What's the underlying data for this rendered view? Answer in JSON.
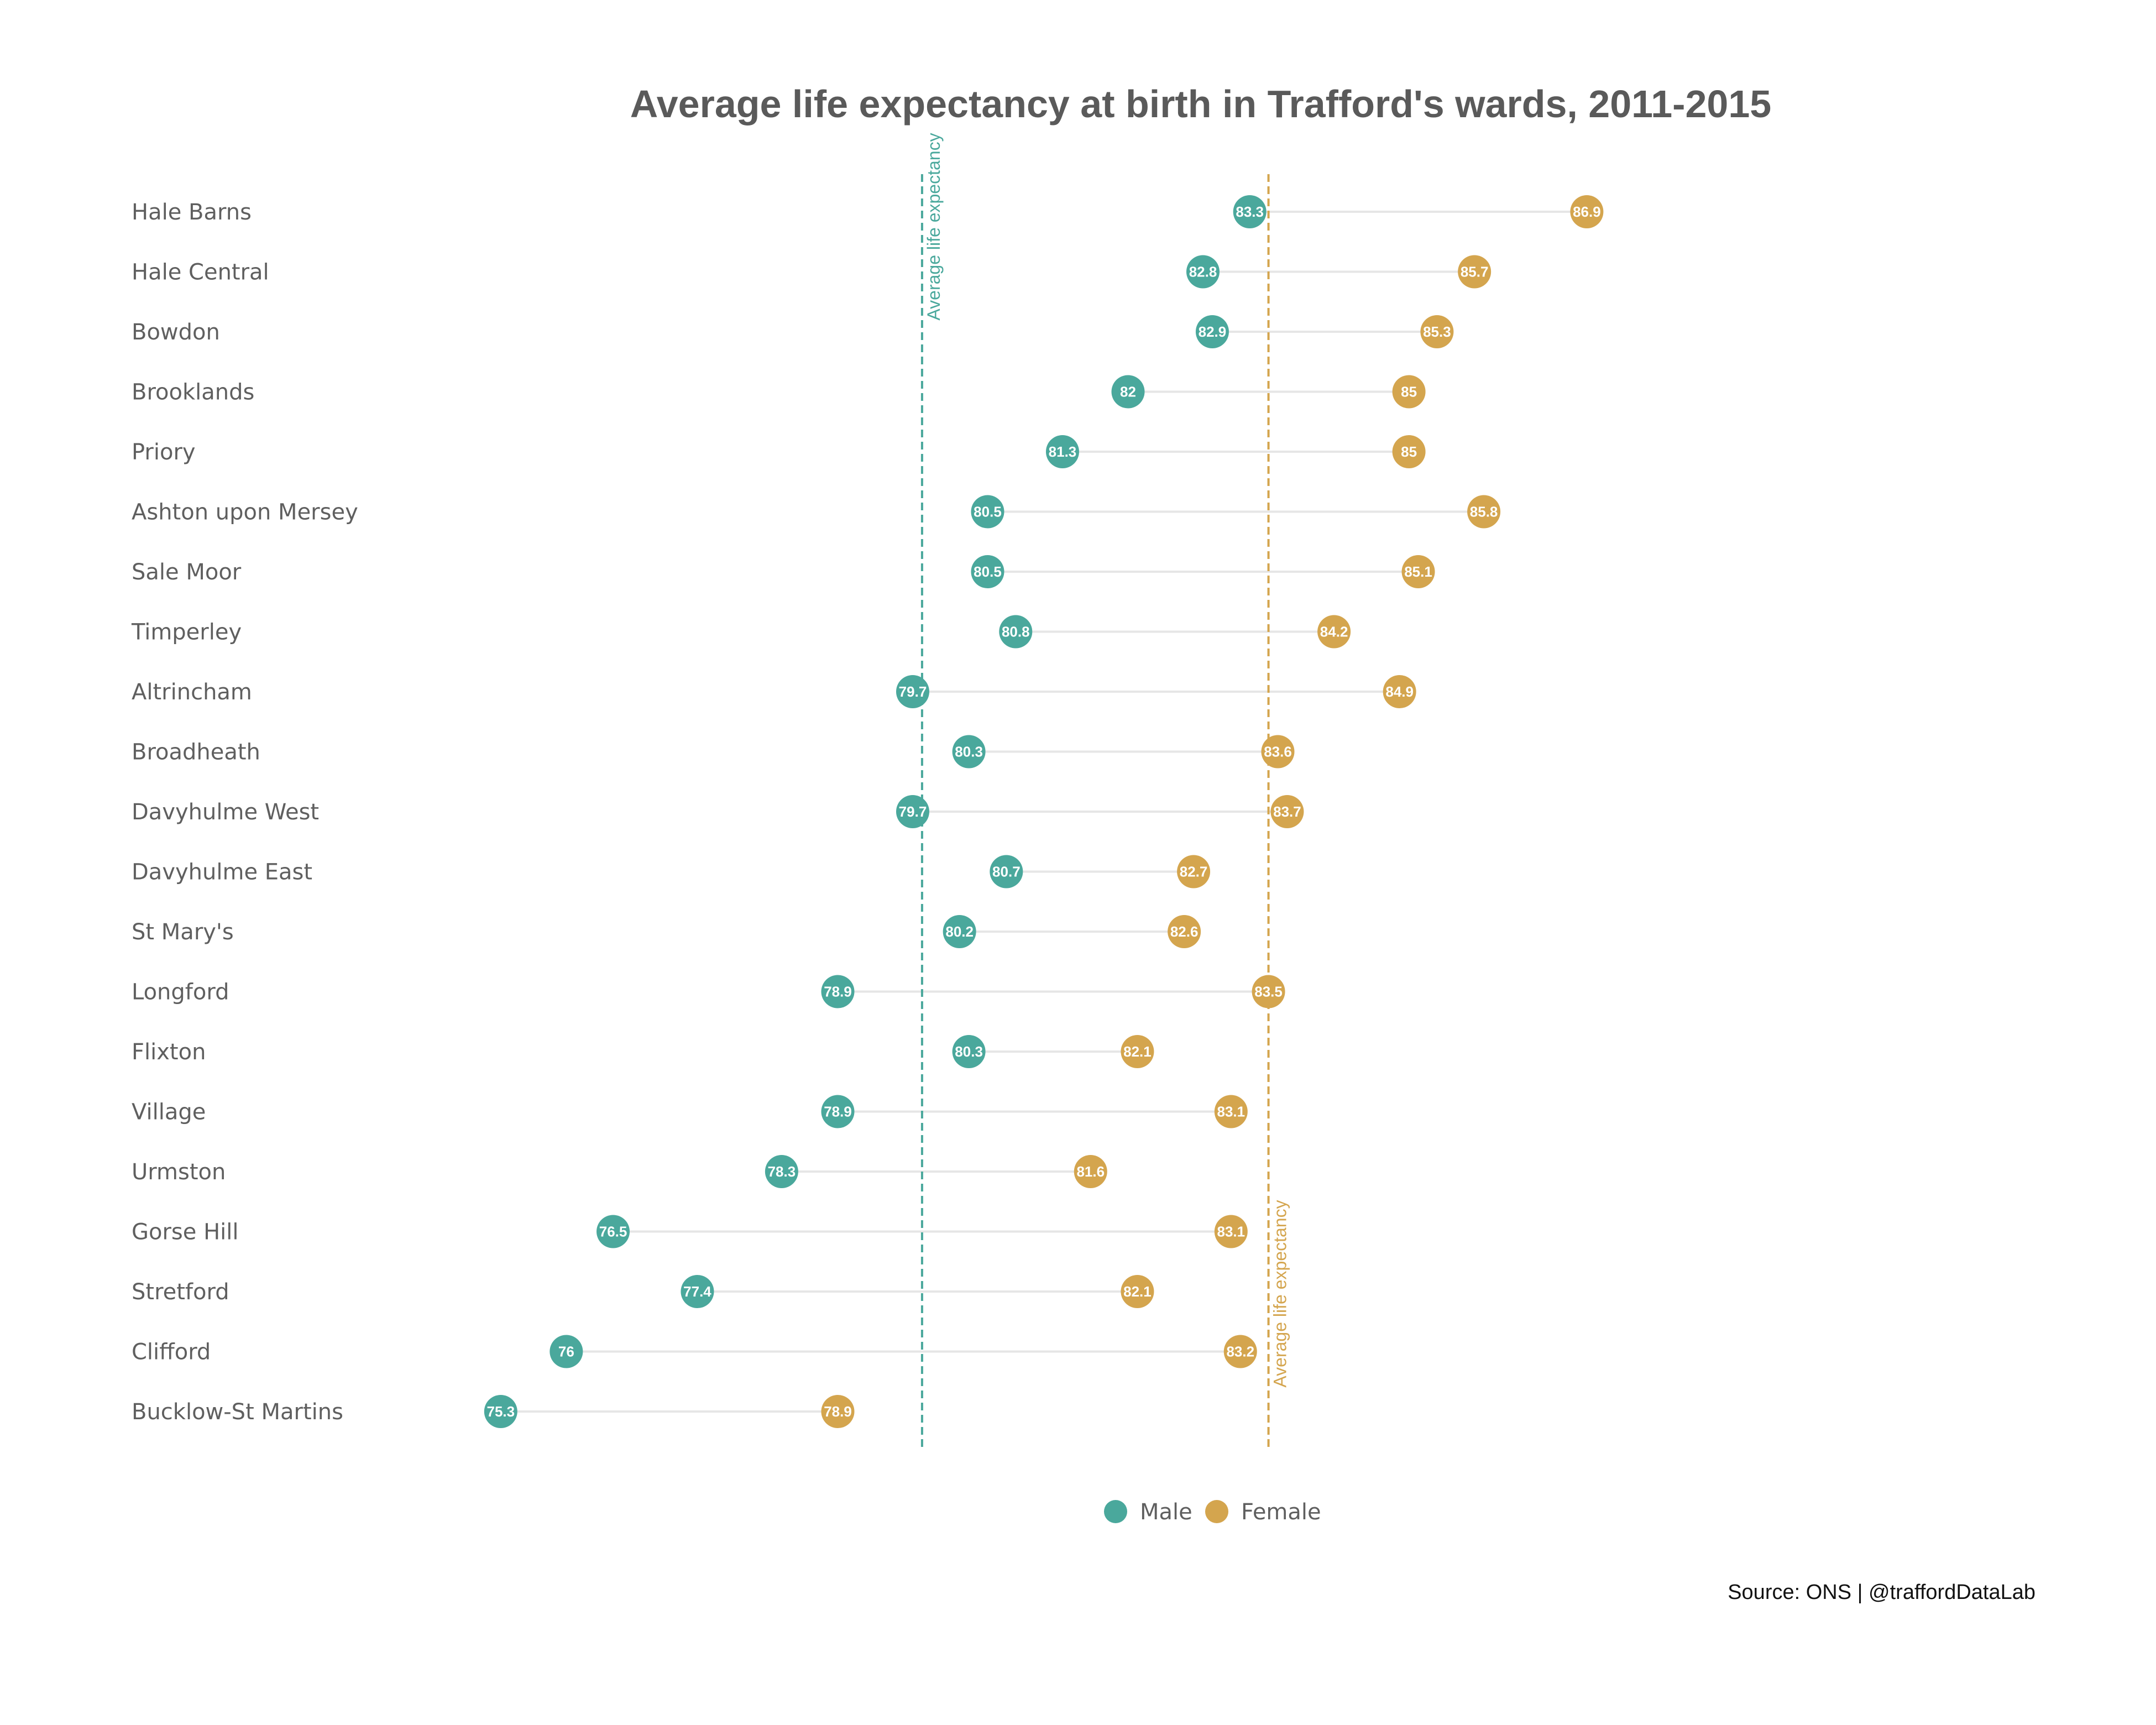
{
  "chart_data": {
    "type": "dumbbell",
    "title": "Average life expectancy at birth in Trafford's wards, 2011-2015",
    "caption": "Source: ONS |  @traffordDataLab",
    "xlim": [
      75.0,
      87.5
    ],
    "grid": false,
    "legend_position": "bottom",
    "colors": {
      "male": "#4aa89c",
      "female": "#d4a54e",
      "segment": "#e6e6e6"
    },
    "series": [
      {
        "name": "Male",
        "key": "male"
      },
      {
        "name": "Female",
        "key": "female"
      }
    ],
    "reference_lines": [
      {
        "series": "male",
        "value": 79.8,
        "label": "Average life expectancy",
        "label_position": "top"
      },
      {
        "series": "female",
        "value": 83.5,
        "label": "Average life expectancy",
        "label_position": "bottom"
      }
    ],
    "rows": [
      {
        "ward": "Hale Barns",
        "male": 83.3,
        "female": 86.9
      },
      {
        "ward": "Hale Central",
        "male": 82.8,
        "female": 85.7
      },
      {
        "ward": "Bowdon",
        "male": 82.9,
        "female": 85.3
      },
      {
        "ward": "Brooklands",
        "male": 82,
        "female": 85
      },
      {
        "ward": "Priory",
        "male": 81.3,
        "female": 85
      },
      {
        "ward": "Ashton upon Mersey",
        "male": 80.5,
        "female": 85.8
      },
      {
        "ward": "Sale Moor",
        "male": 80.5,
        "female": 85.1
      },
      {
        "ward": "Timperley",
        "male": 80.8,
        "female": 84.2
      },
      {
        "ward": "Altrincham",
        "male": 79.7,
        "female": 84.9
      },
      {
        "ward": "Broadheath",
        "male": 80.3,
        "female": 83.6
      },
      {
        "ward": "Davyhulme West",
        "male": 79.7,
        "female": 83.7
      },
      {
        "ward": "Davyhulme East",
        "male": 80.7,
        "female": 82.7
      },
      {
        "ward": "St Mary's",
        "male": 80.2,
        "female": 82.6
      },
      {
        "ward": "Longford",
        "male": 78.9,
        "female": 83.5
      },
      {
        "ward": "Flixton",
        "male": 80.3,
        "female": 82.1
      },
      {
        "ward": "Village",
        "male": 78.9,
        "female": 83.1
      },
      {
        "ward": "Urmston",
        "male": 78.3,
        "female": 81.6
      },
      {
        "ward": "Gorse Hill",
        "male": 76.5,
        "female": 83.1
      },
      {
        "ward": "Stretford",
        "male": 77.4,
        "female": 82.1
      },
      {
        "ward": "Clifford",
        "male": 76,
        "female": 83.2
      },
      {
        "ward": "Bucklow-St Martins",
        "male": 75.3,
        "female": 78.9
      }
    ]
  }
}
